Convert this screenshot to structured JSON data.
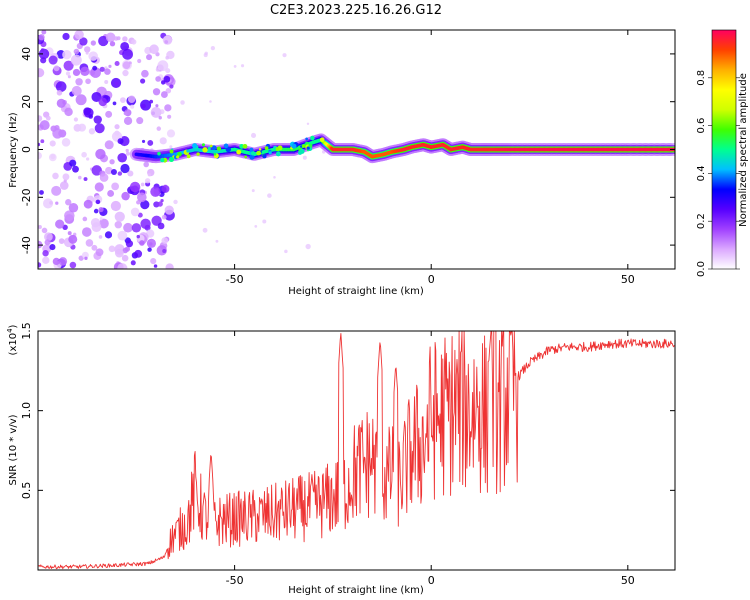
{
  "figure": {
    "title": "C2E3.2023.225.16.26.G12"
  },
  "chart_data": [
    {
      "type": "heatmap",
      "xlabel": "Height of straight line (km)",
      "ylabel": "Frequency (Hz)",
      "xlim": [
        -100,
        62
      ],
      "ylim": [
        -50,
        50
      ],
      "xticks": [
        -50,
        0,
        50
      ],
      "yticks": [
        -40,
        -20,
        0,
        20,
        40
      ],
      "grid": false,
      "ridge": {
        "x": [
          -75,
          -70,
          -65,
          -60,
          -55,
          -50,
          -45,
          -40,
          -35,
          -30,
          -28,
          -25,
          -20,
          -17,
          -15,
          -12,
          -10,
          -7,
          -5,
          -2,
          0,
          3,
          5,
          8,
          10,
          13,
          15,
          20,
          30,
          40,
          50,
          62
        ],
        "y": [
          -2,
          -3,
          -2,
          0,
          -1,
          0,
          -2,
          0,
          0,
          3,
          4,
          0,
          0,
          -1,
          -3,
          -2,
          -1,
          0,
          1,
          2,
          1,
          2,
          0,
          1,
          0,
          0,
          0,
          0,
          0,
          0,
          0,
          0
        ],
        "amplitude": [
          0.3,
          0.35,
          0.4,
          0.45,
          0.45,
          0.5,
          0.5,
          0.5,
          0.55,
          0.5,
          0.5,
          0.95,
          0.95,
          0.9,
          0.9,
          0.9,
          0.9,
          0.95,
          0.95,
          0.95,
          0.95,
          0.95,
          0.95,
          0.95,
          0.95,
          0.95,
          0.95,
          0.98,
          0.98,
          0.98,
          0.98,
          0.98
        ]
      },
      "noise_region_x": [
        -100,
        -70
      ],
      "colorbar": {
        "label": "Normalized spectral amplitude",
        "range": [
          0,
          1
        ],
        "ticks": [
          "0.0",
          "0.2",
          "0.4",
          "0.6",
          "0.8"
        ],
        "tick_values": [
          0,
          0.2,
          0.4,
          0.6,
          0.8
        ],
        "colors": [
          "#ffffff",
          "#dba8ff",
          "#a040ff",
          "#5500ff",
          "#0000ff",
          "#00c0ff",
          "#00ff90",
          "#40ff00",
          "#d0ff00",
          "#ffff00",
          "#ffb000",
          "#ff4000",
          "#ff0060"
        ]
      }
    },
    {
      "type": "line",
      "xlabel": "Height of straight line (km)",
      "ylabel": "SNR (10 * v/v)",
      "y_multiplier": "(x10",
      "y_multiplier_exp": "4",
      "y_multiplier_close": ")",
      "xlim": [
        -100,
        62
      ],
      "ylim": [
        0,
        1.5
      ],
      "xticks": [
        -50,
        0,
        50
      ],
      "yticks": [
        0.5,
        1.0,
        1.5
      ],
      "ytick_labels": [
        "0.5",
        "1.0",
        "1.5"
      ],
      "color": "#ee3333",
      "grid": false,
      "x": [
        -100,
        -90,
        -80,
        -72,
        -68,
        -66,
        -62,
        -60,
        -58,
        -56,
        -50,
        -45,
        -40,
        -35,
        -30,
        -25,
        -22,
        -20,
        -15,
        -13,
        -10,
        -8,
        -5,
        -2,
        0,
        2,
        5,
        8,
        10,
        12,
        14,
        15,
        16,
        17,
        18,
        20,
        25,
        30,
        35,
        40,
        45,
        50,
        55,
        62
      ],
      "y": [
        0.02,
        0.02,
        0.03,
        0.04,
        0.08,
        0.2,
        0.3,
        0.5,
        0.35,
        0.3,
        0.32,
        0.33,
        0.35,
        0.38,
        0.4,
        0.45,
        0.5,
        0.6,
        0.7,
        0.55,
        0.6,
        0.55,
        0.75,
        0.8,
        0.95,
        0.95,
        1.0,
        1.05,
        1.0,
        1.05,
        0.95,
        1.1,
        1.15,
        1.0,
        1.05,
        1.15,
        1.3,
        1.38,
        1.4,
        1.4,
        1.42,
        1.42,
        1.42,
        1.42
      ],
      "spikes": [
        {
          "x": -56,
          "y": 0.75
        },
        {
          "x": -23,
          "y": 1.5
        },
        {
          "x": -13,
          "y": 1.45
        },
        {
          "x": -9,
          "y": 1.3
        },
        {
          "x": 15,
          "y": 1.45
        }
      ]
    }
  ]
}
